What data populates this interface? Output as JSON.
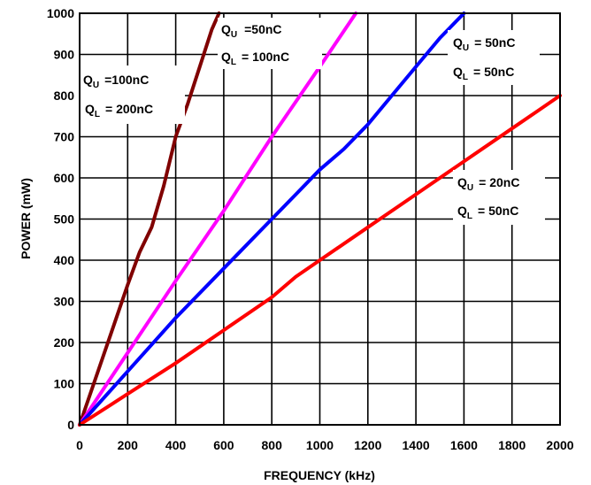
{
  "chart_data": {
    "type": "line",
    "title": "",
    "xlabel": "FREQUENCY (kHz)",
    "ylabel": "POWER (mW)",
    "xlim": [
      0,
      2000
    ],
    "ylim": [
      0,
      1000
    ],
    "x_ticks": [
      "0",
      "200",
      "400",
      "600",
      "800",
      "1000",
      "1200",
      "1400",
      "1600",
      "1800",
      "2000"
    ],
    "y_ticks": [
      "0",
      "100",
      "200",
      "300",
      "400",
      "500",
      "600",
      "700",
      "800",
      "900",
      "1000"
    ],
    "grid": true,
    "legend": "none",
    "series": [
      {
        "color": "#800000",
        "x": [
          0,
          100,
          200,
          250,
          300,
          350,
          400,
          450,
          500,
          550,
          580
        ],
        "y": [
          0,
          170,
          340,
          420,
          480,
          580,
          700,
          780,
          870,
          960,
          1000
        ]
      },
      {
        "color": "#ff00ff",
        "x": [
          0,
          200,
          400,
          600,
          800,
          1000,
          1150
        ],
        "y": [
          0,
          175,
          350,
          520,
          700,
          870,
          1000
        ]
      },
      {
        "color": "#0000ff",
        "x": [
          0,
          200,
          400,
          600,
          800,
          900,
          1000,
          1100,
          1200,
          1300,
          1400,
          1500,
          1600
        ],
        "y": [
          0,
          130,
          260,
          380,
          500,
          560,
          620,
          670,
          730,
          800,
          870,
          940,
          1000
        ]
      },
      {
        "color": "#ff0000",
        "x": [
          0,
          200,
          400,
          600,
          800,
          900,
          1000,
          1200,
          1400,
          1600,
          1700,
          1800,
          1900,
          2000
        ],
        "y": [
          0,
          75,
          150,
          230,
          310,
          360,
          400,
          480,
          560,
          640,
          680,
          720,
          760,
          800
        ]
      }
    ],
    "annotations": [
      {
        "q_upper": "=100nC",
        "q_lower": "= 200nC",
        "u_sub": "U",
        "l_sub": "L",
        "q": "Q"
      },
      {
        "q_upper": "=50nC",
        "q_lower": "= 100nC",
        "u_sub": "U",
        "l_sub": "L",
        "q": "Q"
      },
      {
        "q_upper": "= 50nC",
        "q_lower": "= 50nC",
        "u_sub": "U",
        "l_sub": "L",
        "q": "Q"
      },
      {
        "q_upper": "= 20nC",
        "q_lower": "= 50nC",
        "u_sub": "U",
        "l_sub": "L",
        "q": "Q"
      }
    ]
  }
}
